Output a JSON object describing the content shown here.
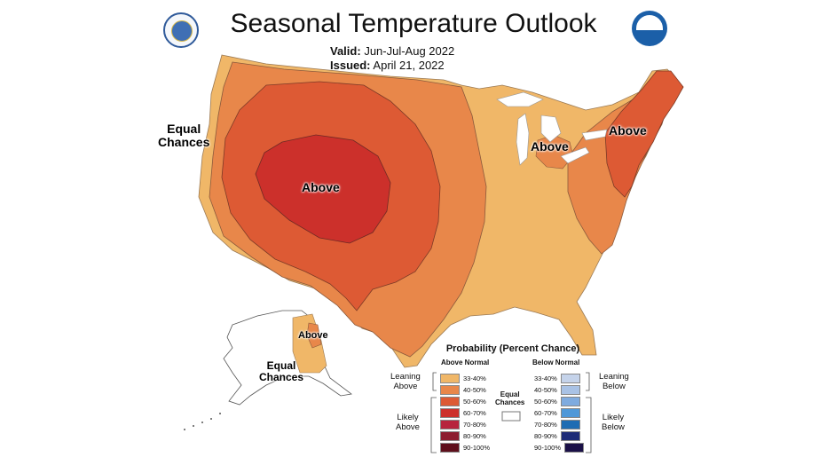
{
  "title": "Seasonal Temperature Outlook",
  "valid_label": "Valid:",
  "valid_value": "Jun-Jul-Aug 2022",
  "issued_label": "Issued:",
  "issued_value": "April 21, 2022",
  "logos": {
    "left": "doc-seal-icon",
    "right": "noaa-logo-icon"
  },
  "map_labels": {
    "equal_chances_west": "Equal\nChances",
    "above_west": "Above",
    "above_great_lakes": "Above",
    "above_northeast": "Above",
    "above_alaska": "Above",
    "equal_chances_alaska": "Equal\nChances"
  },
  "colors": {
    "c33_40": "#f0b768",
    "c40_50": "#e8874a",
    "c50_60": "#dd5a34",
    "c60_70": "#cc302b",
    "c70_80": "#b7233d",
    "c80_90": "#8d1d2f",
    "c90_100": "#5e0f1c",
    "b33_40": "#c5d3ea",
    "b40_50": "#a9c2e5",
    "b50_60": "#7fabdf",
    "b60_70": "#4f98d8",
    "b70_80": "#1e6cb3",
    "b80_90": "#1d2b77",
    "b90_100": "#1a1047"
  },
  "legend": {
    "title": "Probability (Percent Chance)",
    "above_head": "Above Normal",
    "below_head": "Below Normal",
    "equal_label": "Equal\nChances",
    "leaning_above": "Leaning\nAbove",
    "likely_above": "Likely\nAbove",
    "leaning_below": "Leaning\nBelow",
    "likely_below": "Likely\nBelow",
    "ranges": [
      "33-40%",
      "40-50%",
      "50-60%",
      "60-70%",
      "70-80%",
      "80-90%",
      "90-100%"
    ]
  }
}
